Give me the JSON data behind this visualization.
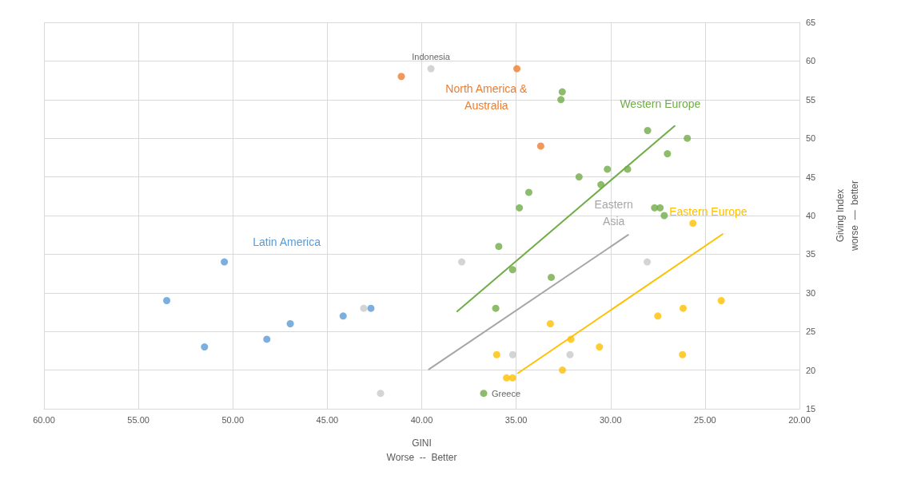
{
  "chart_data": {
    "type": "scatter",
    "xlabel": "GINI\nWorse  --  Better",
    "ylabel": "Giving Index\nworse  —  better",
    "xlim": [
      60,
      20
    ],
    "xticks": [
      {
        "value": 60,
        "label": "60.00"
      },
      {
        "value": 55,
        "label": "55.00"
      },
      {
        "value": 50,
        "label": "50.00"
      },
      {
        "value": 45,
        "label": "45.00"
      },
      {
        "value": 40,
        "label": "40.00"
      },
      {
        "value": 35,
        "label": "35.00"
      },
      {
        "value": 30,
        "label": "30.00"
      },
      {
        "value": 25,
        "label": "25.00"
      },
      {
        "value": 20,
        "label": "20.00"
      }
    ],
    "ylim": [
      15,
      65
    ],
    "yticks": [
      15,
      20,
      25,
      30,
      35,
      40,
      45,
      50,
      55,
      60,
      65
    ],
    "grid": true,
    "legend": false,
    "marker": "circle",
    "series": [
      {
        "name": "Latin America",
        "color": "#5b9bd5",
        "x": [
          53.5,
          51.5,
          50.45,
          48.2,
          46.96,
          44.16,
          42.69
        ],
        "values": [
          29,
          23,
          34,
          24,
          26,
          27,
          28
        ]
      },
      {
        "name": "North America &\nAustralia",
        "color": "#ed7d31",
        "x": [
          41.08,
          34.96,
          33.7
        ],
        "values": [
          58,
          59,
          49
        ]
      },
      {
        "color": "#c9c9c9",
        "x": [
          39.51,
          43.07,
          42.18,
          37.88,
          28.06,
          35.18,
          32.15
        ],
        "values": [
          59,
          28,
          17,
          34,
          34,
          22,
          22
        ]
      },
      {
        "color": "#70ad47",
        "x": [
          32.56,
          32.63,
          28.04,
          25.94,
          26.99,
          29.1,
          30.17,
          31.67,
          30.51,
          34.33,
          34.83,
          27.67,
          27.38,
          27.16,
          35.92,
          35.19,
          33.14,
          36.08,
          36.72
        ],
        "values": [
          56,
          55,
          51,
          50,
          48,
          46,
          46,
          45,
          44,
          43,
          41,
          41,
          41,
          40,
          36,
          33,
          32,
          28,
          17
        ]
      },
      {
        "color": "#ffc000",
        "x": [
          25.64,
          24.14,
          26.16,
          27.5,
          33.19,
          32.1,
          30.59,
          36.03,
          26.19,
          32.55,
          35.51,
          35.19
        ],
        "values": [
          39,
          29,
          28,
          27,
          26,
          24,
          23,
          22,
          22,
          20,
          19,
          19
        ]
      },
      {
        "type": "line",
        "name": "Western Europe",
        "color": "#70ad47",
        "marker": "none",
        "x": [
          38.12,
          26.61
        ],
        "values": [
          27.6,
          51.6
        ]
      },
      {
        "type": "line",
        "name": "Eastern\nAsia",
        "color": "#a6a6a6",
        "marker": "none",
        "x": [
          39.62,
          29.07
        ],
        "values": [
          20.1,
          37.5
        ]
      },
      {
        "type": "line",
        "name": "Eastern Europe",
        "color": "#ffc000",
        "marker": "none",
        "x": [
          34.91,
          24.07
        ],
        "values": [
          19.6,
          37.6
        ]
      }
    ],
    "annotations": [
      {
        "text": "Indonesia",
        "x": 39.51,
        "y": 59
      },
      {
        "text": "Greece",
        "x": 36.72,
        "y": 17
      }
    ]
  }
}
